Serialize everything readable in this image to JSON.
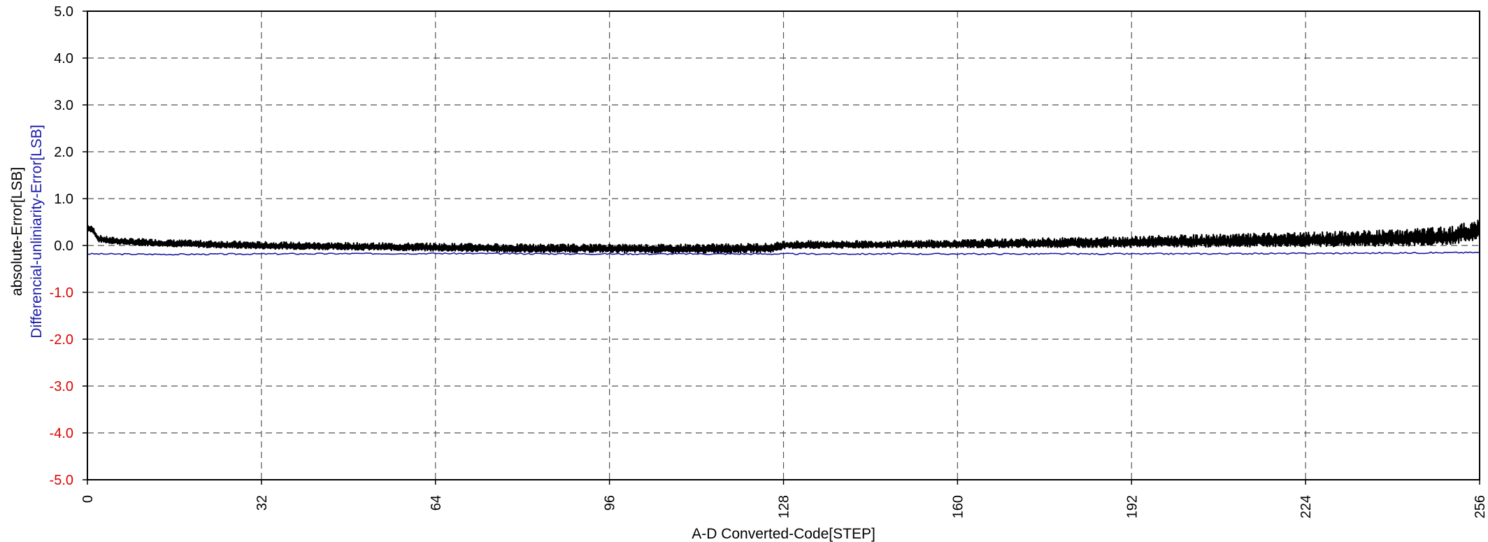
{
  "chart_data": {
    "type": "line",
    "title": "",
    "xlabel": "A-D Converted-Code[STEP]",
    "ylabel": "absolute-Error[LSB]",
    "ylabel2": "Differencial-unliniarity-Error[LSB]",
    "xlim": [
      0,
      256
    ],
    "ylim": [
      -5.0,
      5.0
    ],
    "xticks": [
      "0",
      "32",
      "64",
      "96",
      "128",
      "160",
      "192",
      "224",
      "256"
    ],
    "yticks": [
      "5.0",
      "4.0",
      "3.0",
      "2.0",
      "1.0",
      "0.0",
      "-1.0",
      "-2.0",
      "-3.0",
      "-4.0",
      "-5.0"
    ],
    "grid": true,
    "legend": "none",
    "colors": {
      "absolute": "#000000",
      "differential": "#1a1aa8",
      "negative_tick": "#e00000",
      "grid": "#555555"
    },
    "series": [
      {
        "key": "absolute",
        "x": [
          0,
          1,
          2,
          4,
          8,
          16,
          24,
          32,
          48,
          64,
          80,
          96,
          112,
          126,
          128,
          144,
          160,
          176,
          192,
          208,
          224,
          240,
          250,
          256
        ],
        "y_upper": [
          0.45,
          0.4,
          0.22,
          0.18,
          0.15,
          0.12,
          0.1,
          0.08,
          0.06,
          0.05,
          0.03,
          0.03,
          0.03,
          0.05,
          0.1,
          0.1,
          0.12,
          0.16,
          0.2,
          0.24,
          0.28,
          0.34,
          0.4,
          0.55
        ],
        "y_lower": [
          0.3,
          0.25,
          0.05,
          0.02,
          -0.02,
          -0.05,
          -0.08,
          -0.1,
          -0.12,
          -0.15,
          -0.18,
          -0.18,
          -0.2,
          -0.18,
          -0.1,
          -0.08,
          -0.08,
          -0.08,
          -0.08,
          -0.08,
          -0.08,
          -0.08,
          -0.06,
          0.05
        ]
      },
      {
        "key": "differential",
        "x": [
          0,
          16,
          32,
          64,
          96,
          128,
          160,
          192,
          224,
          240,
          256
        ],
        "y": [
          -0.18,
          -0.19,
          -0.18,
          -0.17,
          -0.18,
          -0.18,
          -0.18,
          -0.18,
          -0.17,
          -0.16,
          -0.15
        ]
      }
    ]
  }
}
